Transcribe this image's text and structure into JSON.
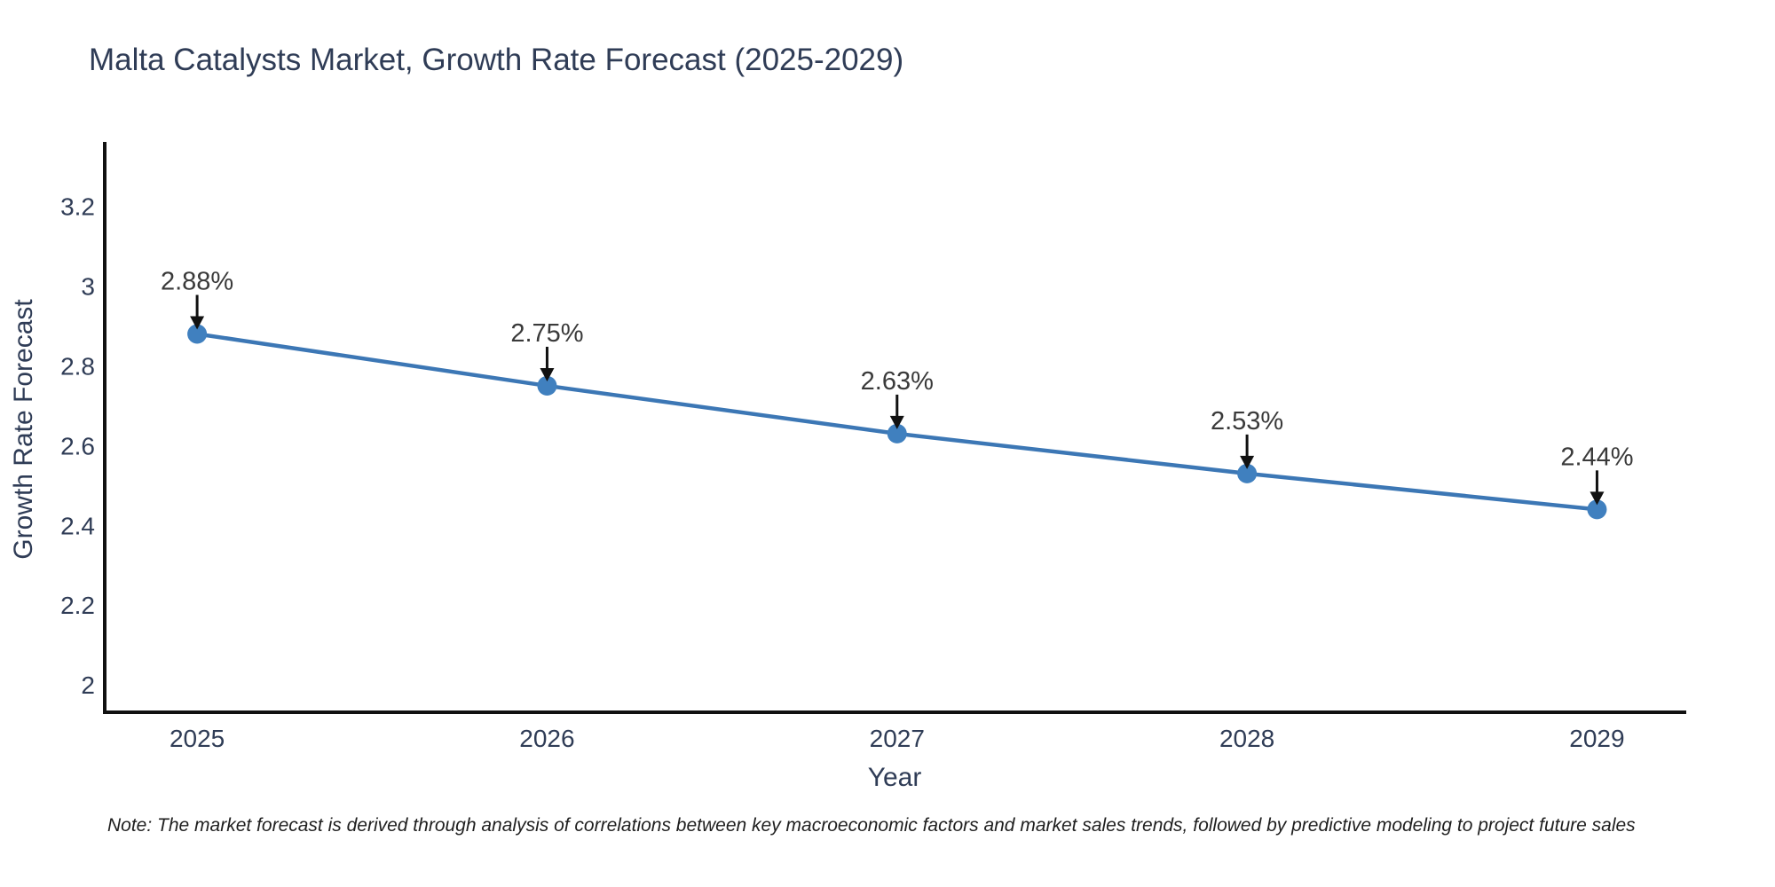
{
  "page": {
    "background": "#ffffff"
  },
  "chart": {
    "note": "Note: The market forecast is derived through analysis of correlations between key macroeconomic factors and market sales trends, followed by predictive modeling to project future sales"
  },
  "chart_data": {
    "type": "line",
    "title": "Malta Catalysts Market, Growth Rate Forecast (2025-2029)",
    "xlabel": "Year",
    "ylabel": "Growth Rate Forecast",
    "x": [
      2025,
      2026,
      2027,
      2028,
      2029
    ],
    "values": [
      2.88,
      2.75,
      2.63,
      2.53,
      2.44
    ],
    "point_labels": [
      "2.88%",
      "2.75%",
      "2.63%",
      "2.44%"
    ],
    "point_labels_full": [
      "2.88%",
      "2.75%",
      "2.63%",
      "2.53%",
      "2.44%"
    ],
    "xticks": [
      2025,
      2026,
      2027,
      2028,
      2029
    ],
    "xtick_labels": [
      "2025",
      "2026",
      "2027",
      "2028",
      "2029"
    ],
    "yticks": [
      2,
      2.2,
      2.4,
      2.6,
      2.8,
      3,
      3.2
    ],
    "ytick_labels": [
      "2",
      "2.2",
      "2.4",
      "2.6",
      "2.8",
      "3",
      "3.2"
    ],
    "xlim": [
      2024.736,
      2029.255
    ],
    "ylim": [
      1.927,
      3.357
    ],
    "grid": false,
    "legend": false,
    "colors": {
      "line": "#3c77b5",
      "marker": "#4080bf",
      "axis_line": "#111111",
      "arrow": "#111111",
      "annotation_text": "#3a3a3a",
      "tick_text": "#2f3c56"
    }
  }
}
